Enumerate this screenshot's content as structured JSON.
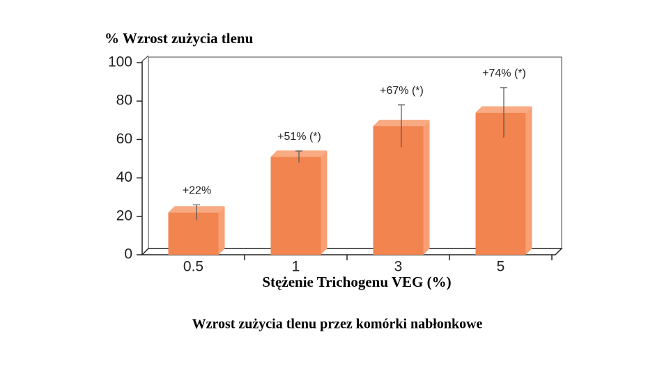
{
  "chart_data": {
    "type": "bar",
    "y_label": "%  Wzrost zużycia tlenu",
    "x_label": "Stężenie Trichogenu VEG (%)",
    "caption": "Wzrost zużycia tlenu przez komórki nabłonkowe",
    "categories": [
      "0.5",
      "1",
      "3",
      "5"
    ],
    "values": [
      22,
      51,
      67,
      74
    ],
    "value_labels": [
      "+22%",
      "+51% (*)",
      "+67% (*)",
      "+74% (*)"
    ],
    "errors": [
      4,
      3,
      11,
      13
    ],
    "color": "#f28450",
    "ylim": [
      0,
      100
    ],
    "yticks": [
      0,
      20,
      40,
      60,
      80,
      100
    ]
  }
}
